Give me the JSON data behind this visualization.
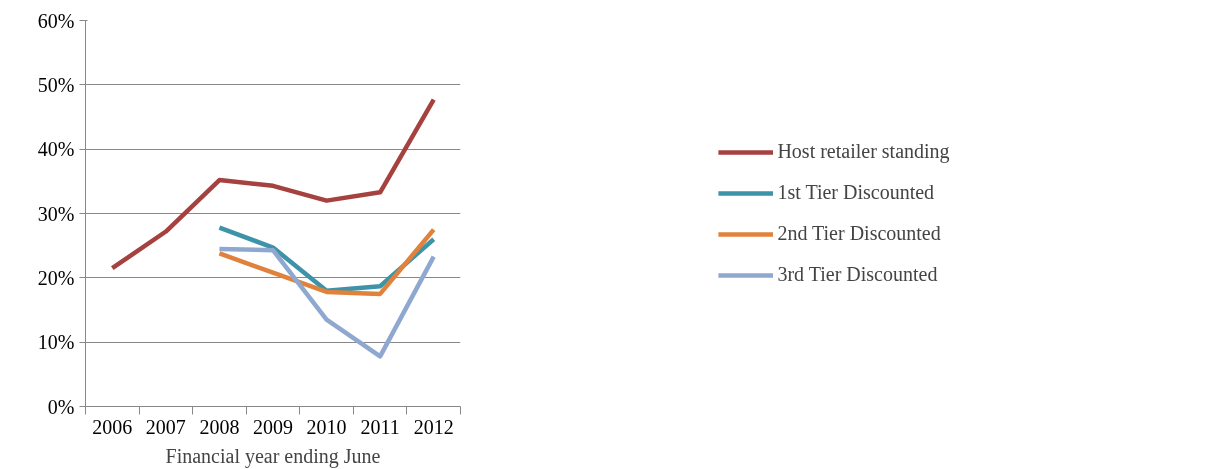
{
  "chart_data": {
    "type": "line",
    "xlabel": "Financial year ending June",
    "categories": [
      "2006",
      "2007",
      "2008",
      "2009",
      "2010",
      "2011",
      "2012"
    ],
    "series": [
      {
        "name": "Host retailer standing",
        "color": "#a5413f",
        "values": [
          21.5,
          27.2,
          35.2,
          34.3,
          32.0,
          33.3,
          47.7
        ]
      },
      {
        "name": "1st Tier Discounted",
        "color": "#3d93a8",
        "values": [
          null,
          null,
          27.8,
          24.7,
          18.0,
          18.7,
          26.0
        ]
      },
      {
        "name": "2nd Tier Discounted",
        "color": "#e0823c",
        "values": [
          null,
          null,
          23.8,
          20.8,
          17.8,
          17.5,
          27.5
        ]
      },
      {
        "name": "3rd Tier Discounted",
        "color": "#8ea8cf",
        "values": [
          null,
          null,
          24.5,
          24.3,
          13.5,
          7.8,
          23.3
        ]
      }
    ],
    "ylim": [
      0,
      60
    ],
    "yticks": [
      {
        "value": 0,
        "label": "0%"
      },
      {
        "value": 10,
        "label": "10%"
      },
      {
        "value": 20,
        "label": "20%"
      },
      {
        "value": 30,
        "label": "30%"
      },
      {
        "value": 40,
        "label": "40%"
      },
      {
        "value": 50,
        "label": "50%"
      },
      {
        "value": 60,
        "label": "60%"
      }
    ],
    "grid": "y",
    "legend": "right"
  }
}
